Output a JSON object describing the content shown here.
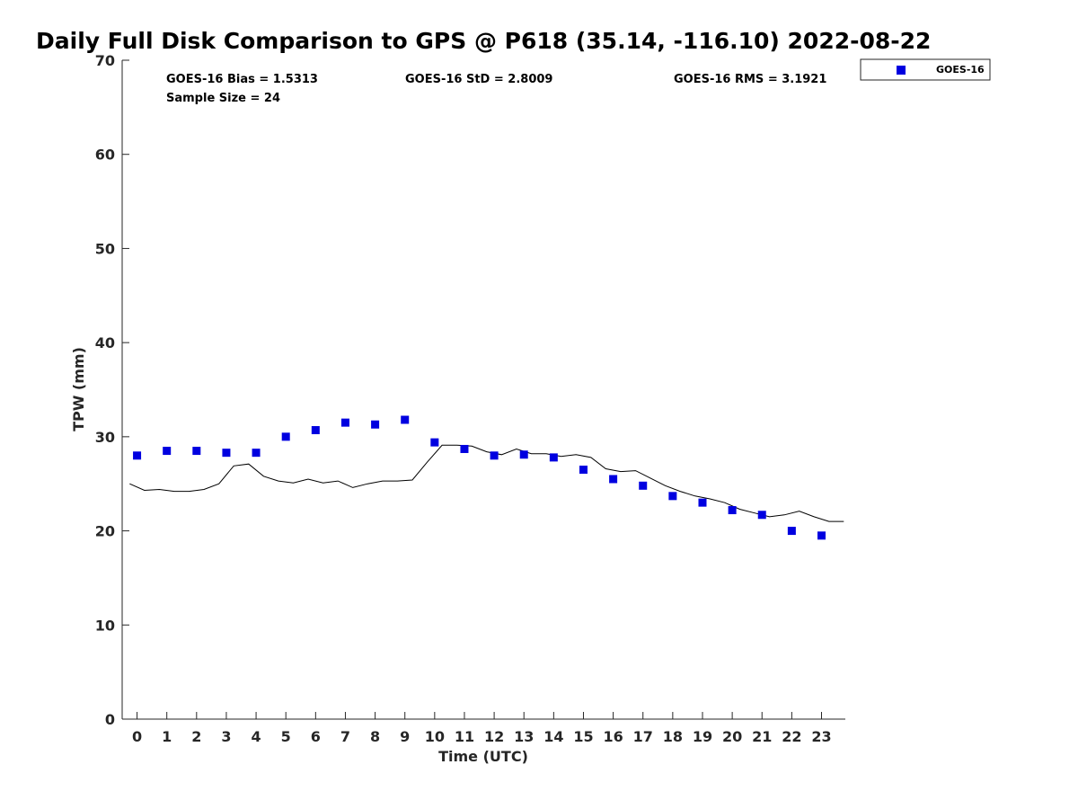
{
  "chart_data": {
    "type": "scatter",
    "title": "Daily Full Disk Comparison to GPS @ P618 (35.14, -116.10) 2022-08-22",
    "xlabel": "Time (UTC)",
    "ylabel": "TPW (mm)",
    "xlim": [
      -0.5,
      23.8
    ],
    "ylim": [
      0,
      70
    ],
    "xticks": [
      0,
      1,
      2,
      3,
      4,
      5,
      6,
      7,
      8,
      9,
      10,
      11,
      12,
      13,
      14,
      15,
      16,
      17,
      18,
      19,
      20,
      21,
      22,
      23
    ],
    "yticks": [
      0,
      10,
      20,
      30,
      40,
      50,
      60,
      70
    ],
    "grid": false,
    "legend_position": "top-right",
    "stats": {
      "bias": "GOES-16 Bias = 1.5313",
      "std": "GOES-16 StD = 2.8009",
      "rms": "GOES-16 RMS = 3.1921",
      "sample": "Sample Size = 24"
    },
    "series": [
      {
        "name": "GOES-16",
        "style": "markers",
        "color": "#0000e0",
        "x": [
          0,
          1,
          2,
          3,
          4,
          5,
          6,
          7,
          8,
          9,
          10,
          11,
          12,
          13,
          14,
          15,
          16,
          17,
          18,
          19,
          20,
          21,
          22,
          23
        ],
        "values": [
          28.0,
          28.5,
          28.5,
          28.3,
          28.3,
          30.0,
          30.7,
          31.5,
          31.3,
          31.8,
          29.4,
          28.7,
          28.0,
          28.1,
          27.8,
          26.5,
          25.5,
          24.8,
          23.7,
          23.0,
          22.2,
          21.7,
          20.0,
          19.5
        ]
      },
      {
        "style": "line",
        "color": "#000000",
        "x": [
          -0.25,
          0.25,
          0.75,
          1.25,
          1.75,
          2.25,
          2.75,
          3.25,
          3.75,
          4.25,
          4.75,
          5.25,
          5.75,
          6.25,
          6.75,
          7.25,
          7.75,
          8.25,
          8.75,
          9.25,
          9.75,
          10.25,
          10.75,
          11.25,
          11.75,
          12.25,
          12.75,
          13.25,
          13.75,
          14.25,
          14.75,
          15.25,
          15.75,
          16.25,
          16.75,
          17.25,
          17.75,
          18.25,
          18.75,
          19.25,
          19.75,
          20.25,
          20.75,
          21.25,
          21.75,
          22.25,
          22.75,
          23.25,
          23.75
        ],
        "values": [
          25.0,
          24.3,
          24.4,
          24.2,
          24.2,
          24.4,
          25.0,
          26.9,
          27.1,
          25.8,
          25.3,
          25.1,
          25.5,
          25.1,
          25.3,
          24.6,
          25.0,
          25.3,
          25.3,
          25.4,
          27.3,
          29.1,
          29.1,
          29.0,
          28.4,
          28.1,
          28.7,
          28.2,
          28.2,
          27.9,
          28.1,
          27.8,
          26.6,
          26.3,
          26.4,
          25.6,
          24.8,
          24.2,
          23.7,
          23.4,
          23.0,
          22.3,
          21.9,
          21.5,
          21.7,
          22.1,
          21.5,
          21.0,
          21.0
        ]
      }
    ]
  }
}
